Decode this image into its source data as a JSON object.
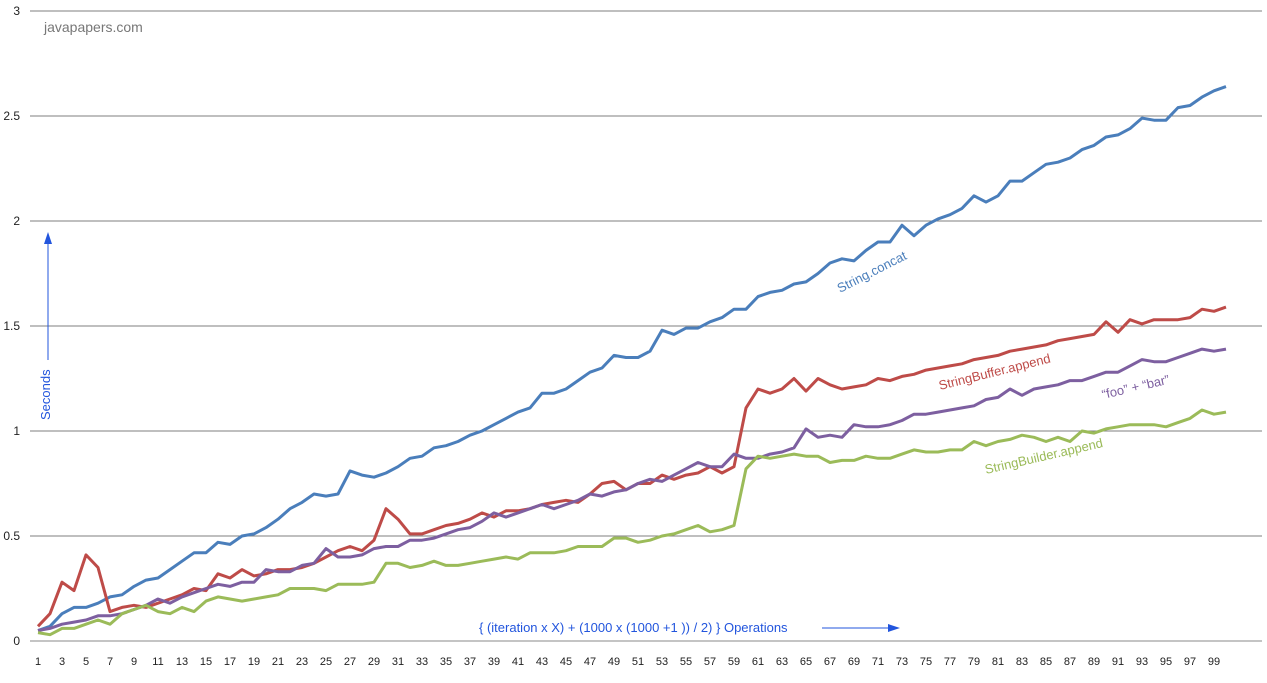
{
  "chart_data": {
    "type": "line",
    "watermark": "javapapers.com",
    "ylabel": "Seconds",
    "xlabel": "{ (iteration x X) + (1000 x (1000 +1 )) / 2) } Operations",
    "ylim": [
      0,
      3
    ],
    "yticks": [
      "0",
      "0.5",
      "1",
      "1.5",
      "2",
      "2.5",
      "3"
    ],
    "xlim": [
      1,
      100
    ],
    "xticks": [
      "1",
      "3",
      "5",
      "7",
      "9",
      "11",
      "13",
      "15",
      "17",
      "19",
      "21",
      "23",
      "25",
      "27",
      "29",
      "31",
      "33",
      "35",
      "37",
      "39",
      "41",
      "43",
      "45",
      "47",
      "49",
      "51",
      "53",
      "55",
      "57",
      "59",
      "61",
      "63",
      "65",
      "67",
      "69",
      "71",
      "73",
      "75",
      "77",
      "79",
      "81",
      "83",
      "85",
      "87",
      "89",
      "91",
      "93",
      "95",
      "97",
      "99"
    ],
    "grid": "horizontal",
    "legend": "inline labels",
    "series": [
      {
        "name": "String.concat",
        "color": "#4a7ebb",
        "values": [
          0.05,
          0.07,
          0.13,
          0.16,
          0.16,
          0.18,
          0.21,
          0.22,
          0.26,
          0.29,
          0.3,
          0.34,
          0.38,
          0.42,
          0.42,
          0.47,
          0.46,
          0.5,
          0.51,
          0.54,
          0.58,
          0.63,
          0.66,
          0.7,
          0.69,
          0.7,
          0.81,
          0.79,
          0.78,
          0.8,
          0.83,
          0.87,
          0.88,
          0.92,
          0.93,
          0.95,
          0.98,
          1.0,
          1.03,
          1.06,
          1.09,
          1.11,
          1.18,
          1.18,
          1.2,
          1.24,
          1.28,
          1.3,
          1.36,
          1.35,
          1.35,
          1.38,
          1.48,
          1.46,
          1.49,
          1.49,
          1.52,
          1.54,
          1.58,
          1.58,
          1.64,
          1.66,
          1.67,
          1.7,
          1.71,
          1.75,
          1.8,
          1.82,
          1.81,
          1.86,
          1.9,
          1.9,
          1.98,
          1.93,
          1.98,
          2.01,
          2.03,
          2.06,
          2.12,
          2.09,
          2.12,
          2.19,
          2.19,
          2.23,
          2.27,
          2.28,
          2.3,
          2.34,
          2.36,
          2.4,
          2.41,
          2.44,
          2.49,
          2.48,
          2.48,
          2.54,
          2.55,
          2.59,
          2.62,
          2.64
        ]
      },
      {
        "name": "StringBuffer.append",
        "color": "#be4b48",
        "values": [
          0.07,
          0.13,
          0.28,
          0.24,
          0.41,
          0.35,
          0.14,
          0.16,
          0.17,
          0.16,
          0.18,
          0.2,
          0.22,
          0.25,
          0.24,
          0.32,
          0.3,
          0.34,
          0.31,
          0.32,
          0.34,
          0.34,
          0.35,
          0.37,
          0.4,
          0.43,
          0.45,
          0.43,
          0.48,
          0.63,
          0.58,
          0.51,
          0.51,
          0.53,
          0.55,
          0.56,
          0.58,
          0.61,
          0.59,
          0.62,
          0.62,
          0.63,
          0.65,
          0.66,
          0.67,
          0.66,
          0.7,
          0.75,
          0.76,
          0.72,
          0.75,
          0.75,
          0.79,
          0.77,
          0.79,
          0.8,
          0.83,
          0.8,
          0.83,
          1.11,
          1.2,
          1.18,
          1.2,
          1.25,
          1.19,
          1.25,
          1.22,
          1.2,
          1.21,
          1.22,
          1.25,
          1.24,
          1.26,
          1.27,
          1.29,
          1.3,
          1.31,
          1.32,
          1.34,
          1.35,
          1.36,
          1.38,
          1.39,
          1.4,
          1.41,
          1.43,
          1.44,
          1.45,
          1.46,
          1.52,
          1.47,
          1.53,
          1.51,
          1.53,
          1.53,
          1.53,
          1.54,
          1.58,
          1.57,
          1.59
        ]
      },
      {
        "name": "“foo” + “bar”",
        "color": "#7d5fa0",
        "values": [
          0.05,
          0.06,
          0.08,
          0.09,
          0.1,
          0.12,
          0.12,
          0.13,
          0.15,
          0.17,
          0.2,
          0.18,
          0.21,
          0.23,
          0.25,
          0.27,
          0.26,
          0.28,
          0.28,
          0.34,
          0.33,
          0.33,
          0.36,
          0.37,
          0.44,
          0.4,
          0.4,
          0.41,
          0.44,
          0.45,
          0.45,
          0.48,
          0.48,
          0.49,
          0.51,
          0.53,
          0.54,
          0.57,
          0.61,
          0.59,
          0.61,
          0.63,
          0.65,
          0.63,
          0.65,
          0.67,
          0.7,
          0.69,
          0.71,
          0.72,
          0.75,
          0.77,
          0.76,
          0.79,
          0.82,
          0.85,
          0.83,
          0.83,
          0.89,
          0.87,
          0.87,
          0.89,
          0.9,
          0.92,
          1.01,
          0.97,
          0.98,
          0.97,
          1.03,
          1.02,
          1.02,
          1.03,
          1.05,
          1.08,
          1.08,
          1.09,
          1.1,
          1.11,
          1.12,
          1.15,
          1.16,
          1.2,
          1.17,
          1.2,
          1.21,
          1.22,
          1.24,
          1.24,
          1.26,
          1.28,
          1.28,
          1.31,
          1.34,
          1.33,
          1.33,
          1.35,
          1.37,
          1.39,
          1.38,
          1.39
        ]
      },
      {
        "name": "StringBuilder.append",
        "color": "#9bbb59",
        "values": [
          0.04,
          0.03,
          0.06,
          0.06,
          0.08,
          0.1,
          0.08,
          0.13,
          0.15,
          0.17,
          0.14,
          0.13,
          0.16,
          0.14,
          0.19,
          0.21,
          0.2,
          0.19,
          0.2,
          0.21,
          0.22,
          0.25,
          0.25,
          0.25,
          0.24,
          0.27,
          0.27,
          0.27,
          0.28,
          0.37,
          0.37,
          0.35,
          0.36,
          0.38,
          0.36,
          0.36,
          0.37,
          0.38,
          0.39,
          0.4,
          0.39,
          0.42,
          0.42,
          0.42,
          0.43,
          0.45,
          0.45,
          0.45,
          0.49,
          0.49,
          0.47,
          0.48,
          0.5,
          0.51,
          0.53,
          0.55,
          0.52,
          0.53,
          0.55,
          0.82,
          0.88,
          0.87,
          0.88,
          0.89,
          0.88,
          0.88,
          0.85,
          0.86,
          0.86,
          0.88,
          0.87,
          0.87,
          0.89,
          0.91,
          0.9,
          0.9,
          0.91,
          0.91,
          0.95,
          0.93,
          0.95,
          0.96,
          0.98,
          0.97,
          0.95,
          0.97,
          0.95,
          1.0,
          0.99,
          1.01,
          1.02,
          1.03,
          1.03,
          1.03,
          1.02,
          1.04,
          1.06,
          1.1,
          1.08,
          1.09
        ]
      }
    ]
  }
}
